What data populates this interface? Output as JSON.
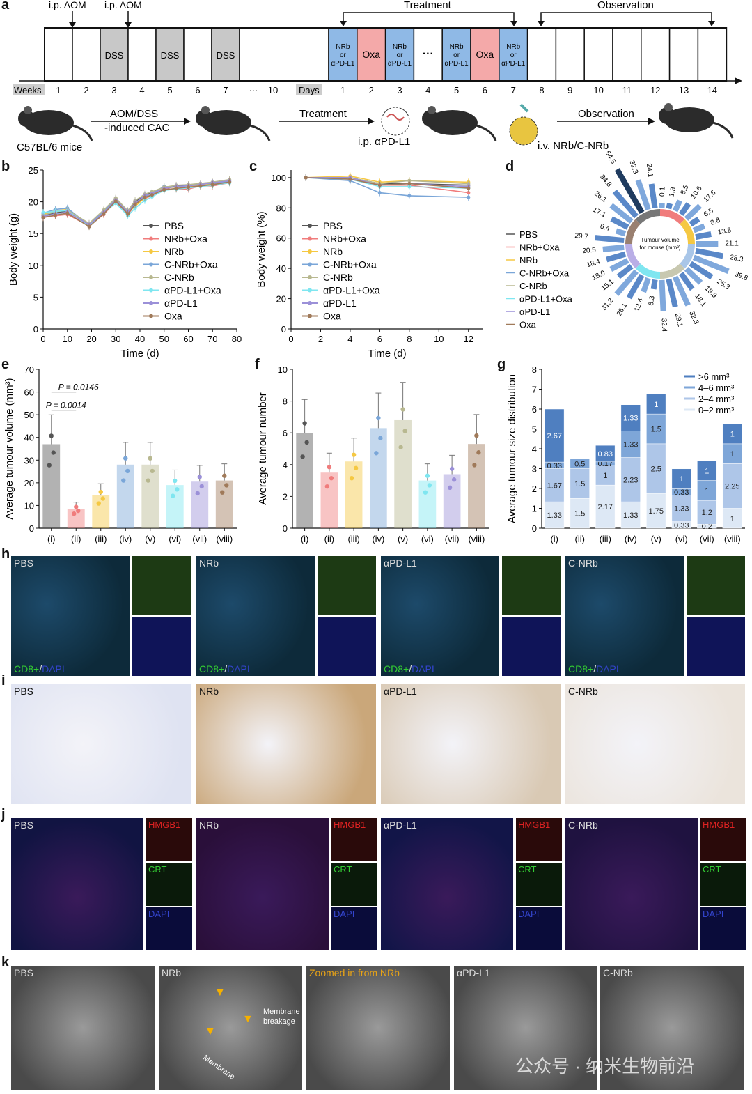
{
  "panel_labels": {
    "a": "a",
    "b": "b",
    "c": "c",
    "d": "d",
    "e": "e",
    "f": "f",
    "g": "g",
    "h": "h",
    "i": "i",
    "j": "j",
    "k": "k"
  },
  "timeline": {
    "aom1": "i.p. AOM",
    "aom2": "i.p. AOM",
    "treatment": "Treatment",
    "observation": "Observation",
    "dss": "DSS",
    "weeks": "Weeks",
    "days": "Days",
    "week_ticks": [
      "1",
      "2",
      "3",
      "4",
      "5",
      "6",
      "7",
      "···",
      "10"
    ],
    "day_ticks": [
      "1",
      "2",
      "3",
      "4",
      "5",
      "6",
      "7",
      "8",
      "9",
      "10",
      "11",
      "12",
      "13",
      "14"
    ],
    "nrb_box": [
      "NRb",
      "or",
      "αPD-L1"
    ],
    "oxa": "Oxa",
    "dots": "···",
    "mice_label": "C57BL/6 mice",
    "arrow1_top": "AOM/DSS",
    "arrow1_bottom": "-induced CAC",
    "arrow2": "Treatment",
    "arrow3": "Observation",
    "ip": "i.p. αPD-L1",
    "iv": "i.v. NRb/C-NRb"
  },
  "legend_groups": [
    "PBS",
    "NRb+Oxa",
    "NRb",
    "C-NRb+Oxa",
    "C-NRb",
    "αPD-L1+Oxa",
    "αPD-L1",
    "Oxa"
  ],
  "group_colors": [
    "#555555",
    "#f07c7c",
    "#f5c842",
    "#7aa6d8",
    "#b8b890",
    "#7fe6f0",
    "#9b90d8",
    "#a07a5a"
  ],
  "chart_data": [
    {
      "id": "b",
      "type": "line",
      "xlabel": "Time (d)",
      "ylabel": "Body weight (g)",
      "xlim": [
        0,
        80
      ],
      "ylim": [
        0,
        25
      ],
      "xticks": [
        "0",
        "10",
        "20",
        "30",
        "40",
        "50",
        "60",
        "70",
        "80"
      ],
      "yticks": [
        "0",
        "5",
        "10",
        "15",
        "20",
        "25"
      ],
      "x": [
        0,
        5,
        10,
        19,
        25,
        30,
        35,
        38,
        42,
        45,
        50,
        55,
        60,
        65,
        70,
        77
      ],
      "series": [
        {
          "name": "PBS",
          "values": [
            17.8,
            18.3,
            18.5,
            16.5,
            18.5,
            20.5,
            18.5,
            20,
            21,
            21.5,
            22,
            22.5,
            22.5,
            22.8,
            23,
            23.2
          ]
        },
        {
          "name": "NRb+Oxa",
          "values": [
            17.6,
            17.8,
            18,
            16.2,
            18,
            20,
            18,
            19.5,
            20.5,
            21,
            22,
            22,
            22,
            22.5,
            22.5,
            23
          ]
        },
        {
          "name": "NRb",
          "values": [
            18,
            18.6,
            18.8,
            16.4,
            18.4,
            20.2,
            18.3,
            19.3,
            20.6,
            21.2,
            22.2,
            22.3,
            22.4,
            22.6,
            22.8,
            23.4
          ]
        },
        {
          "name": "C-NRb+Oxa",
          "values": [
            18.2,
            18.8,
            19,
            16.3,
            18.6,
            20.4,
            18.2,
            19.6,
            20.8,
            21.4,
            22.4,
            22.3,
            22.6,
            22.8,
            22.9,
            23.2
          ]
        },
        {
          "name": "C-NRb",
          "values": [
            17.9,
            18.4,
            18.7,
            16.6,
            18.7,
            20.6,
            18.6,
            20.2,
            21.2,
            21.6,
            22.3,
            22.6,
            22.7,
            22.9,
            23.1,
            23.5
          ]
        },
        {
          "name": "αPD-L1+Oxa",
          "values": [
            18.3,
            18.5,
            18.6,
            16.2,
            18.2,
            19.8,
            17.8,
            19,
            20.2,
            20.8,
            21.8,
            22,
            22.2,
            22.4,
            22.6,
            23
          ]
        },
        {
          "name": "αPD-L1",
          "values": [
            17.7,
            18.1,
            18.4,
            16.4,
            18.3,
            20.3,
            18.4,
            19.8,
            21,
            21.3,
            22.1,
            22.4,
            22.5,
            22.7,
            23,
            23.3
          ]
        },
        {
          "name": "Oxa",
          "values": [
            17.5,
            17.9,
            18.2,
            16.1,
            18.1,
            20.1,
            18.1,
            19.6,
            20.7,
            21.1,
            21.9,
            22.1,
            22.3,
            22.5,
            22.7,
            23.1
          ]
        }
      ]
    },
    {
      "id": "c",
      "type": "line",
      "xlabel": "Time (d)",
      "ylabel": "Body weight (%)",
      "xlim": [
        0,
        13
      ],
      "ylim": [
        0,
        105
      ],
      "xticks": [
        "0",
        "2",
        "4",
        "6",
        "8",
        "10",
        "12"
      ],
      "yticks": [
        "0",
        "20",
        "40",
        "60",
        "80",
        "100"
      ],
      "x": [
        1,
        4,
        6,
        8,
        12
      ],
      "series": [
        {
          "name": "PBS",
          "values": [
            100,
            100,
            96,
            96,
            95
          ]
        },
        {
          "name": "NRb+Oxa",
          "values": [
            100,
            99,
            95,
            95,
            90
          ]
        },
        {
          "name": "NRb",
          "values": [
            100,
            101,
            97,
            98,
            97
          ]
        },
        {
          "name": "C-NRb+Oxa",
          "values": [
            100,
            98,
            90,
            88,
            87
          ]
        },
        {
          "name": "C-NRb",
          "values": [
            100,
            100,
            96,
            98,
            96
          ]
        },
        {
          "name": "αPD-L1+Oxa",
          "values": [
            100,
            99,
            94,
            94,
            93
          ]
        },
        {
          "name": "αPD-L1",
          "values": [
            100,
            100,
            95,
            96,
            94
          ]
        },
        {
          "name": "Oxa",
          "values": [
            100,
            99,
            95,
            96,
            93
          ]
        }
      ]
    },
    {
      "id": "d",
      "type": "bar",
      "center_label": [
        "Tumour volume",
        "for mouse (mm³)"
      ],
      "values": [
        54.5,
        32.3,
        24.1,
        0.1,
        1.3,
        8.5,
        10.6,
        17.6,
        6.5,
        8.8,
        13.8,
        21.1,
        28.3,
        39.8,
        25.3,
        18.9,
        18.1,
        32.3,
        29.1,
        32.4,
        6.3,
        12.4,
        26.1,
        31.2,
        15.1,
        18.0,
        18.4,
        20.5,
        29.7,
        6.4,
        17.1,
        26.1,
        34.8
      ],
      "labels": [
        "54.5",
        "32.3",
        "24.1",
        "0.1",
        "1.3",
        "8.5",
        "10.6",
        "17.6",
        "6.5",
        "8.8",
        "13.8",
        "21.1",
        "28.3",
        "39.8",
        "25.3",
        "18.9",
        "18.1",
        "32.3",
        "29.1",
        "32.4",
        "6.3",
        "12.4",
        "26.1",
        "31.2",
        "15.1",
        "18.0",
        "18.4",
        "20.5",
        "29.7",
        "6.4",
        "17.1",
        "26.1",
        "34.8"
      ]
    },
    {
      "id": "e",
      "type": "bar",
      "ylabel": "Average tumour volume (mm³)",
      "ylim": [
        0,
        70
      ],
      "categories": [
        "(i)",
        "(ii)",
        "(iii)",
        "(iv)",
        "(v)",
        "(vi)",
        "(vii)",
        "(viii)"
      ],
      "values": [
        37,
        8.5,
        14.5,
        28,
        28,
        19,
        20.5,
        21
      ],
      "yticks": [
        "0",
        "10",
        "20",
        "30",
        "40",
        "50",
        "60",
        "70"
      ],
      "pvalues": [
        "P = 0.0146",
        "P = 0.0014"
      ]
    },
    {
      "id": "f",
      "type": "bar",
      "ylabel": "Average tumour number",
      "ylim": [
        0,
        10
      ],
      "categories": [
        "(i)",
        "(ii)",
        "(iii)",
        "(iv)",
        "(v)",
        "(vi)",
        "(vii)",
        "(viii)"
      ],
      "values": [
        6,
        3.5,
        4.2,
        6.3,
        6.8,
        3,
        3.4,
        5.3
      ],
      "yticks": [
        "0",
        "2",
        "4",
        "6",
        "8",
        "10"
      ]
    },
    {
      "id": "g",
      "type": "bar",
      "ylabel": "Average tumour size distribution",
      "ylim": [
        0,
        8
      ],
      "categories": [
        "(i)",
        "(ii)",
        "(iii)",
        "(iv)",
        "(v)",
        "(vi)",
        "(vii)",
        "(viii)"
      ],
      "yticks": [
        "0",
        "1",
        "2",
        "3",
        "4",
        "5",
        "6",
        "7",
        "8"
      ],
      "series": [
        {
          "name": "0–2 mm³",
          "values": [
            1.33,
            1.5,
            2.17,
            1.33,
            1.75,
            0.33,
            0.2,
            1
          ],
          "labels": [
            "1.33",
            "1.5",
            "2.17",
            "1.33",
            "1.75",
            "0.33",
            "0.2",
            "1"
          ]
        },
        {
          "name": "2–4 mm³",
          "values": [
            1.67,
            1.5,
            1,
            2.23,
            2.5,
            1.33,
            1.2,
            2.25
          ],
          "labels": [
            "1.67",
            "1.5",
            "1",
            "2.23",
            "2.5",
            "1.33",
            "1.2",
            "2.25"
          ]
        },
        {
          "name": "4–6 mm³",
          "values": [
            0.33,
            0.5,
            0.17,
            1.33,
            1.5,
            0.33,
            1,
            1
          ],
          "labels": [
            "0.33",
            "0.5",
            "0.17",
            "1.33",
            "1.5",
            "0.33",
            "1",
            "1"
          ]
        },
        {
          "name": ">6 mm³",
          "values": [
            2.67,
            0,
            0.83,
            1.33,
            1,
            1,
            1,
            1
          ],
          "labels": [
            "2.67",
            "",
            "0.83",
            "1.33",
            "1",
            "1",
            "1",
            "1"
          ]
        }
      ]
    }
  ],
  "micro": {
    "h_tags": [
      "PBS",
      "NRb",
      "αPD-L1",
      "C-NRb"
    ],
    "h_stain": [
      "CD8+",
      "/",
      "DAPI"
    ],
    "i_tags": [
      "PBS",
      "NRb",
      "αPD-L1",
      "C-NRb"
    ],
    "j_tags": [
      "PBS",
      "NRb",
      "αPD-L1",
      "C-NRb"
    ],
    "j_small": [
      "HMGB1",
      "CRT",
      "DAPI"
    ],
    "k_tags": [
      "PBS",
      "NRb",
      "Zoomed in from NRb",
      "αPD-L1",
      "C-NRb"
    ],
    "k_notes": [
      "Membrane",
      "breakage",
      "Membrane"
    ],
    "watermark": "公众号 · 纳米生物前沿"
  }
}
